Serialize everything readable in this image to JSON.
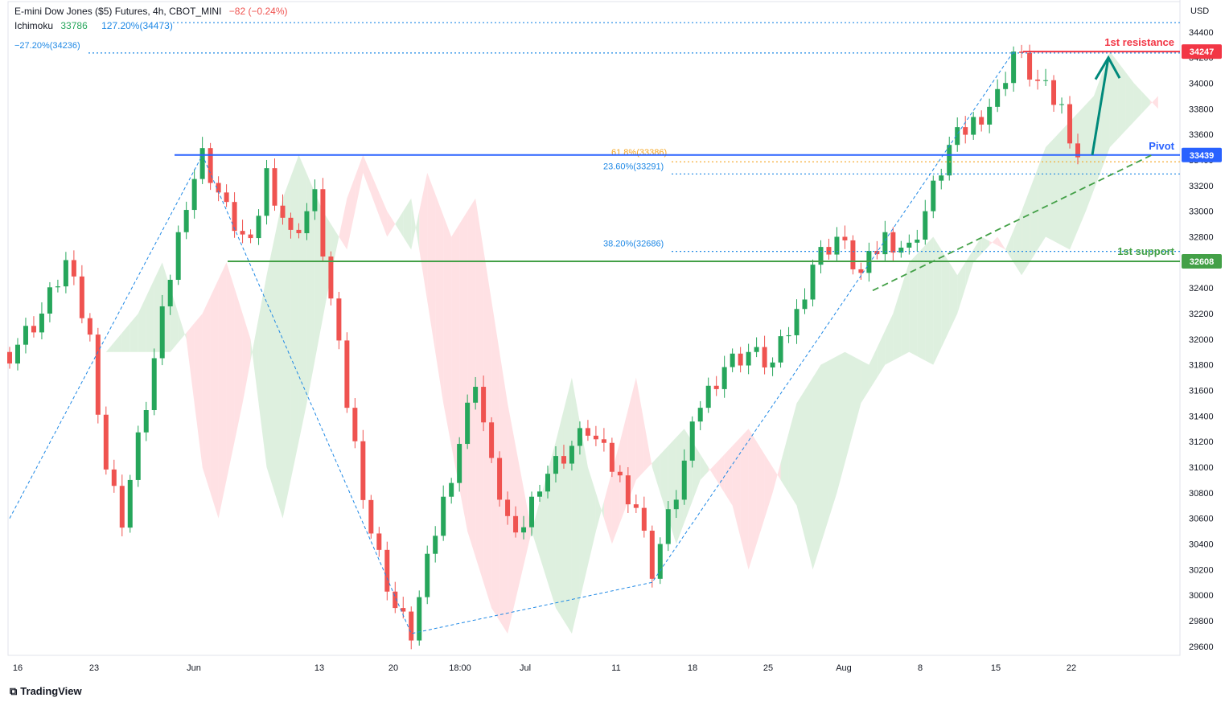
{
  "header": {
    "symbol": "E-mini Dow Jones ($5) Futures, 4h, CBOT_MINI",
    "change": "−82 (−0.24%)",
    "indicator_name": "Ichimoku",
    "indicator_value": "33786",
    "fib_top_label": "127.20%(34473)"
  },
  "watermark": "TradingView",
  "colors": {
    "bull": "#26a65b",
    "bear": "#ef5350",
    "cloud_bull": "#c8e6c9",
    "cloud_bear": "#ffcdd2",
    "pivot": "#2962ff",
    "resistance": "#f23645",
    "support": "#43a047",
    "fib": "#1e88e5",
    "fib618": "#f5a623",
    "arrow": "#00897b"
  },
  "chart_data": {
    "type": "candlestick",
    "currency_label": "USD",
    "y_ticks": [
      29600,
      29800,
      30000,
      30200,
      30400,
      30600,
      30800,
      31000,
      31200,
      31400,
      31600,
      31800,
      32000,
      32200,
      32400,
      32600,
      32800,
      33000,
      33200,
      33400,
      33600,
      33800,
      34000,
      34200,
      34400
    ],
    "ylim": [
      29530,
      34650
    ],
    "x_ticks": [
      "16",
      "23",
      "Jun",
      "13",
      "20",
      "18:00",
      "Jul",
      "11",
      "18",
      "25",
      "Aug",
      "8",
      "15",
      "22"
    ],
    "price_path": [
      [
        0,
        31900
      ],
      [
        4,
        32200
      ],
      [
        7,
        32600
      ],
      [
        10,
        32000
      ],
      [
        12,
        31000
      ],
      [
        14,
        30600
      ],
      [
        17,
        31500
      ],
      [
        20,
        32500
      ],
      [
        22,
        33100
      ],
      [
        24,
        33439
      ],
      [
        27,
        33000
      ],
      [
        30,
        32700
      ],
      [
        32,
        33300
      ],
      [
        35,
        32800
      ],
      [
        38,
        33100
      ],
      [
        40,
        32300
      ],
      [
        42,
        31500
      ],
      [
        45,
        30500
      ],
      [
        48,
        29900
      ],
      [
        50,
        29700
      ],
      [
        53,
        30500
      ],
      [
        56,
        31200
      ],
      [
        58,
        31700
      ],
      [
        60,
        31000
      ],
      [
        63,
        30400
      ],
      [
        66,
        30900
      ],
      [
        69,
        31100
      ],
      [
        72,
        31300
      ],
      [
        75,
        31000
      ],
      [
        78,
        30700
      ],
      [
        80,
        30200
      ],
      [
        83,
        30800
      ],
      [
        86,
        31500
      ],
      [
        89,
        31800
      ],
      [
        92,
        31900
      ],
      [
        95,
        31800
      ],
      [
        98,
        32200
      ],
      [
        100,
        32600
      ],
      [
        103,
        32800
      ],
      [
        106,
        32500
      ],
      [
        109,
        32800
      ],
      [
        112,
        32700
      ],
      [
        114,
        33000
      ],
      [
        117,
        33500
      ],
      [
        120,
        33700
      ],
      [
        123,
        33900
      ],
      [
        125,
        34247
      ],
      [
        128,
        34000
      ],
      [
        131,
        33800
      ],
      [
        133,
        33439
      ]
    ],
    "levels": [
      {
        "name": "1st resistance",
        "value": 34247,
        "label": "34247"
      },
      {
        "name": "Pivot",
        "value": 33439,
        "label": "33439"
      },
      {
        "name": "1st support",
        "value": 32608,
        "label": "32608"
      }
    ],
    "fib_levels": [
      {
        "label": "127.20%(34473)",
        "value": 34473
      },
      {
        "label": "−27.20%(34236)",
        "value": 34236
      },
      {
        "label": "61.8%(33386)",
        "value": 33386
      },
      {
        "label": "23.60%(33291)",
        "value": 33291
      },
      {
        "label": "38.20%(32686)",
        "value": 32686
      }
    ]
  }
}
